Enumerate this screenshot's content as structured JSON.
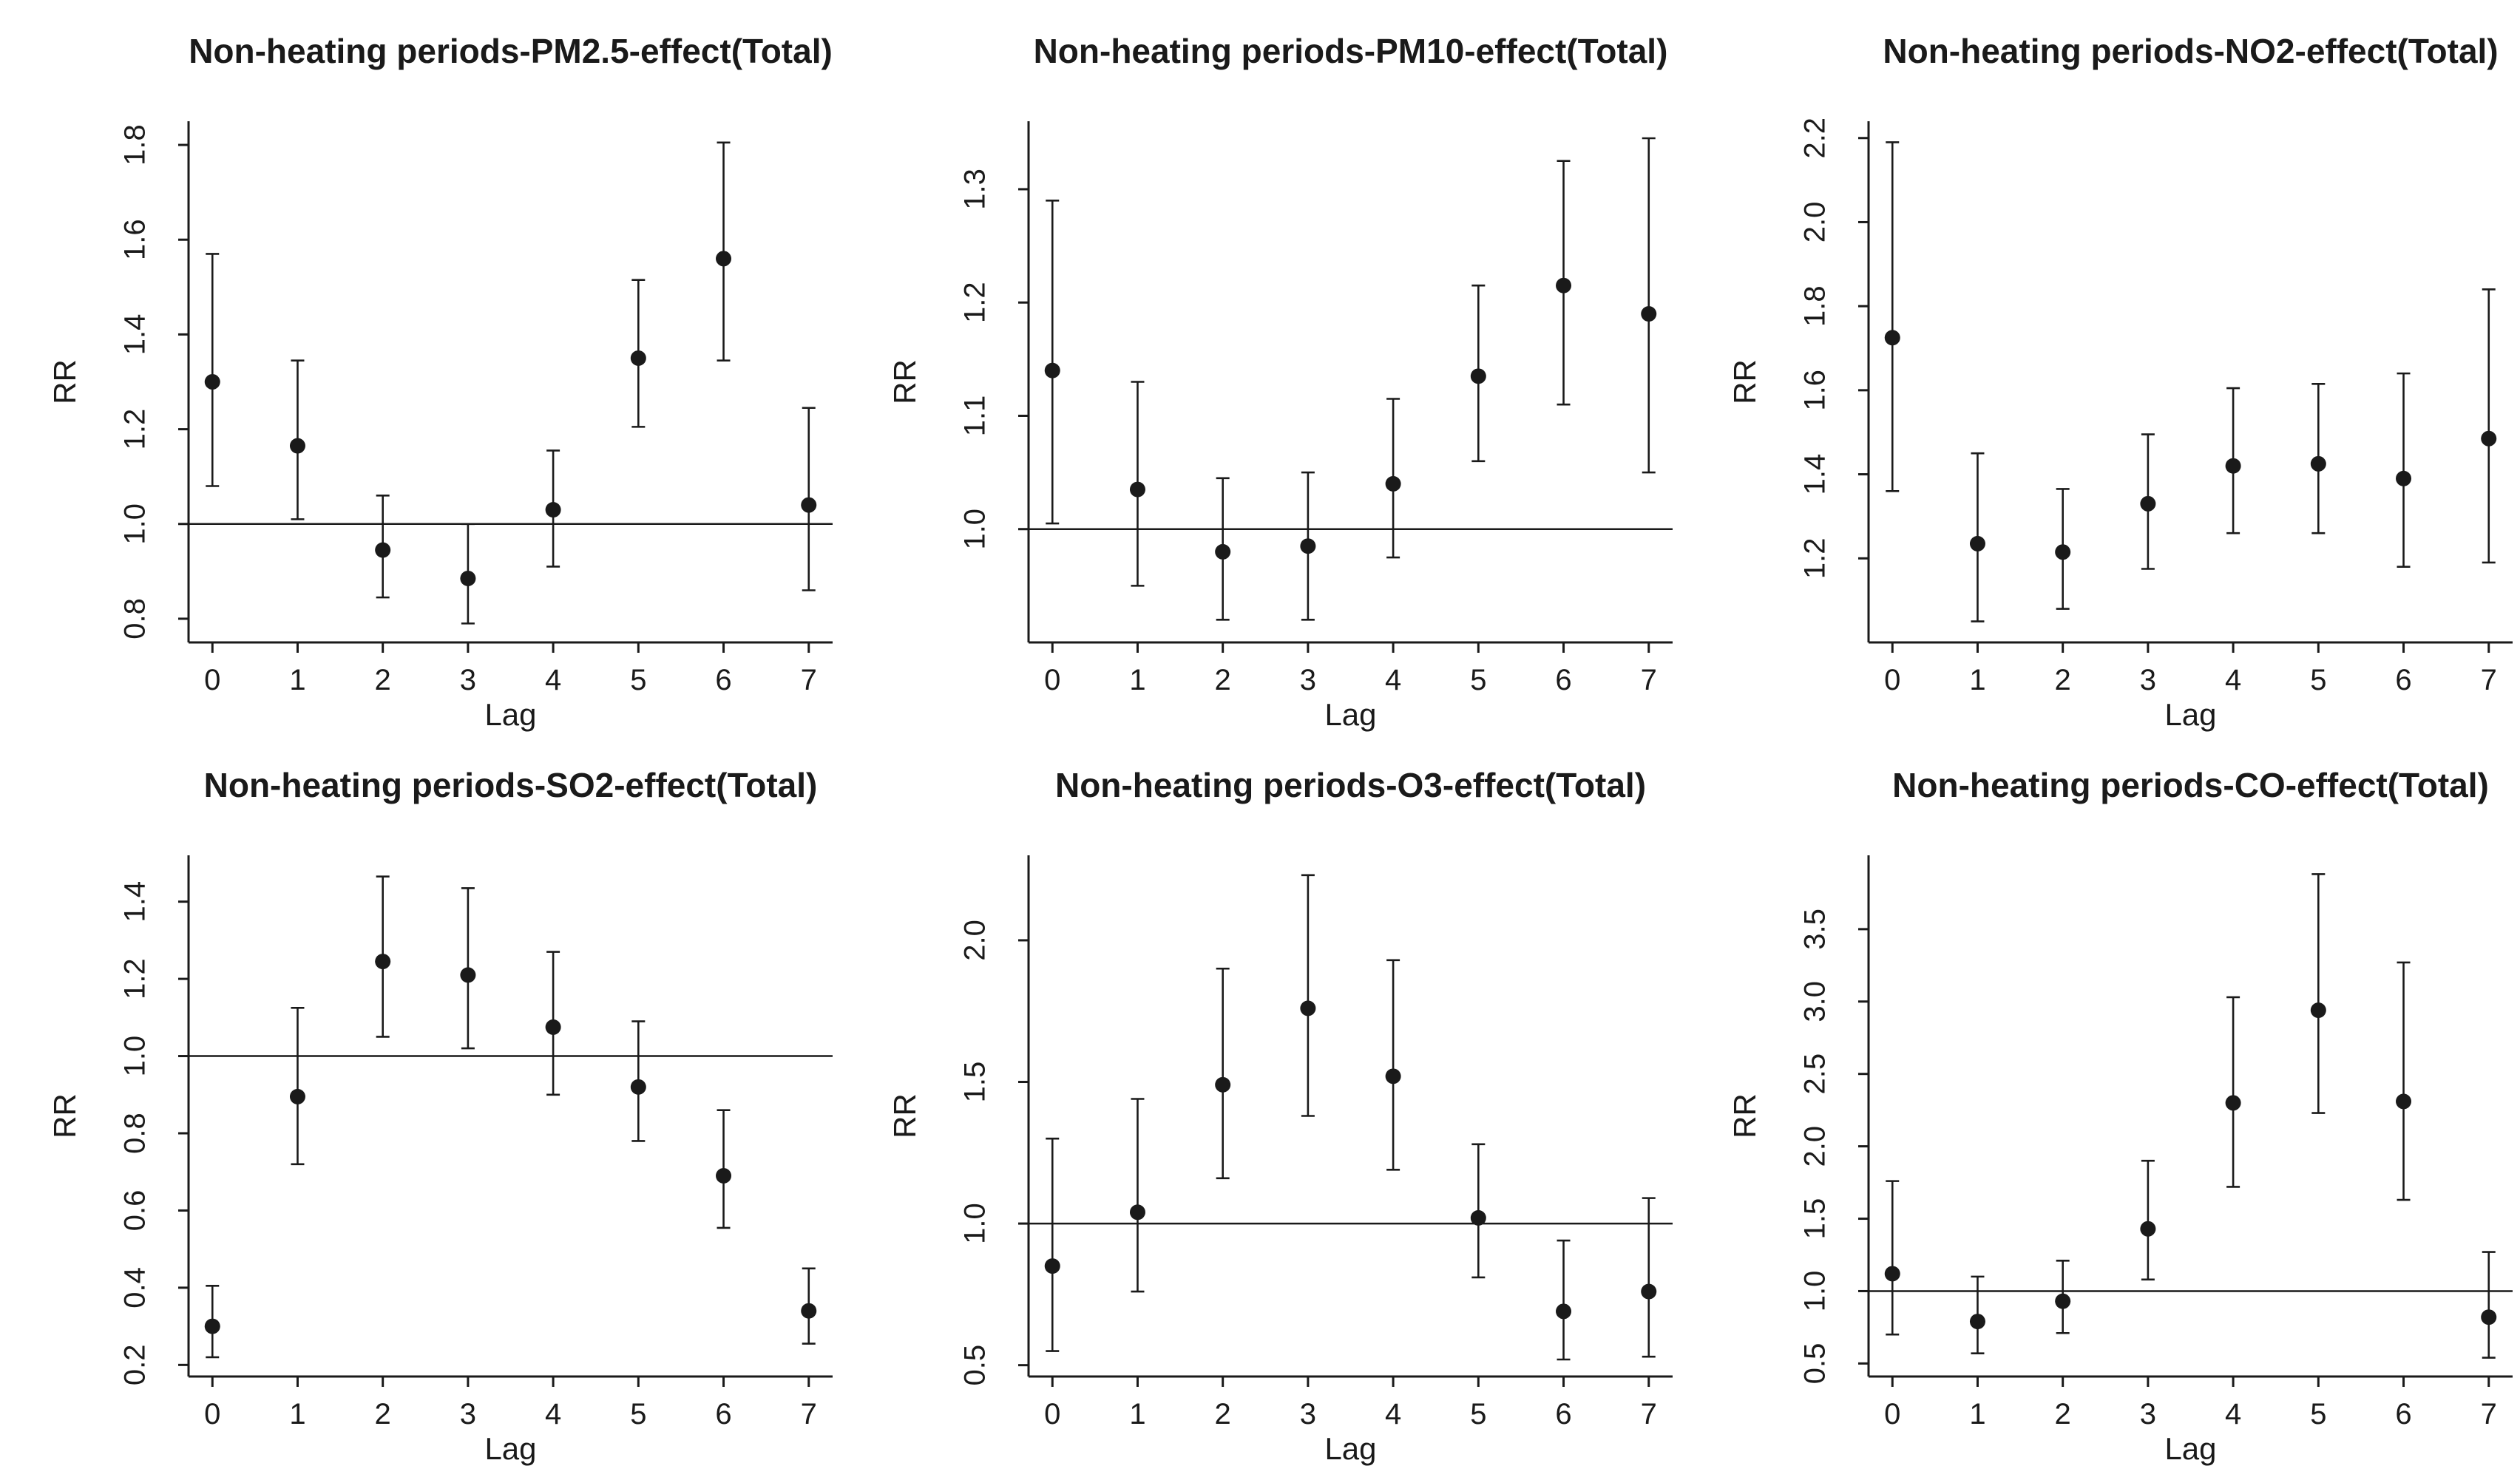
{
  "figure": {
    "background": "#ffffff",
    "ink_color": "#1a1a1a",
    "x_axis_label": "Lag",
    "y_axis_label": "RR",
    "x_ticks": [
      0,
      1,
      2,
      3,
      4,
      5,
      6,
      7
    ]
  },
  "chart_data": [
    {
      "type": "scatter",
      "title": "Non-heating periods-PM2.5-effect(Total)",
      "xlabel": "Lag",
      "ylabel": "RR",
      "x": [
        0,
        1,
        2,
        3,
        4,
        5,
        6,
        7
      ],
      "y": [
        1.3,
        1.165,
        0.945,
        0.885,
        1.03,
        1.35,
        1.56,
        1.04
      ],
      "ci_low": [
        1.08,
        1.01,
        0.845,
        0.79,
        0.91,
        1.205,
        1.345,
        0.86
      ],
      "ci_high": [
        1.57,
        1.345,
        1.06,
        1.0,
        1.155,
        1.515,
        1.805,
        1.245
      ],
      "yticks": [
        0.8,
        1.0,
        1.2,
        1.4,
        1.6,
        1.8
      ],
      "ylim": [
        0.75,
        1.85
      ],
      "xlim": [
        -0.28,
        7.28
      ],
      "refline": 1.0,
      "grid": false,
      "legend": null
    },
    {
      "type": "scatter",
      "title": "Non-heating periods-PM10-effect(Total)",
      "xlabel": "Lag",
      "ylabel": "RR",
      "x": [
        0,
        1,
        2,
        3,
        4,
        5,
        6,
        7
      ],
      "y": [
        1.14,
        1.035,
        0.98,
        0.985,
        1.04,
        1.135,
        1.215,
        1.19
      ],
      "ci_low": [
        1.005,
        0.95,
        0.92,
        0.92,
        0.975,
        1.06,
        1.11,
        1.05
      ],
      "ci_high": [
        1.29,
        1.13,
        1.045,
        1.05,
        1.115,
        1.215,
        1.325,
        1.345
      ],
      "yticks": [
        1.0,
        1.1,
        1.2,
        1.3
      ],
      "ylim": [
        0.9,
        1.36
      ],
      "xlim": [
        -0.28,
        7.28
      ],
      "refline": 1.0,
      "grid": false,
      "legend": null
    },
    {
      "type": "scatter",
      "title": "Non-heating periods-NO2-effect(Total)",
      "xlabel": "Lag",
      "ylabel": "RR",
      "x": [
        0,
        1,
        2,
        3,
        4,
        5,
        6,
        7
      ],
      "y": [
        1.725,
        1.235,
        1.215,
        1.33,
        1.42,
        1.425,
        1.39,
        1.485
      ],
      "ci_low": [
        1.36,
        1.05,
        1.08,
        1.175,
        1.26,
        1.26,
        1.18,
        1.19
      ],
      "ci_high": [
        2.19,
        1.45,
        1.365,
        1.495,
        1.605,
        1.615,
        1.64,
        1.84
      ],
      "yticks": [
        1.2,
        1.4,
        1.6,
        1.8,
        2.0,
        2.2
      ],
      "ylim": [
        1.0,
        2.24
      ],
      "xlim": [
        -0.28,
        7.28
      ],
      "refline": null,
      "grid": false,
      "legend": null
    },
    {
      "type": "scatter",
      "title": "Non-heating periods-SO2-effect(Total)",
      "xlabel": "Lag",
      "ylabel": "RR",
      "x": [
        0,
        1,
        2,
        3,
        4,
        5,
        6,
        7
      ],
      "y": [
        0.3,
        0.895,
        1.245,
        1.21,
        1.075,
        0.92,
        0.69,
        0.34
      ],
      "ci_low": [
        0.22,
        0.72,
        1.05,
        1.02,
        0.9,
        0.78,
        0.555,
        0.255
      ],
      "ci_high": [
        0.405,
        1.125,
        1.465,
        1.435,
        1.27,
        1.09,
        0.86,
        0.45
      ],
      "yticks": [
        0.2,
        0.4,
        0.6,
        0.8,
        1.0,
        1.2,
        1.4
      ],
      "ylim": [
        0.17,
        1.52
      ],
      "xlim": [
        -0.28,
        7.28
      ],
      "refline": 1.0,
      "grid": false,
      "legend": null
    },
    {
      "type": "scatter",
      "title": "Non-heating periods-O3-effect(Total)",
      "xlabel": "Lag",
      "ylabel": "RR",
      "x": [
        0,
        1,
        2,
        3,
        4,
        5,
        6,
        7
      ],
      "y": [
        0.85,
        1.04,
        1.49,
        1.76,
        1.52,
        1.02,
        0.69,
        0.76
      ],
      "ci_low": [
        0.55,
        0.76,
        1.16,
        1.38,
        1.19,
        0.81,
        0.52,
        0.53
      ],
      "ci_high": [
        1.3,
        1.44,
        1.9,
        2.23,
        1.93,
        1.28,
        0.94,
        1.09
      ],
      "yticks": [
        0.5,
        1.0,
        1.5,
        2.0
      ],
      "ylim": [
        0.46,
        2.3
      ],
      "xlim": [
        -0.28,
        7.28
      ],
      "refline": 1.0,
      "grid": false,
      "legend": null
    },
    {
      "type": "scatter",
      "title": "Non-heating periods-CO-effect(Total)",
      "xlabel": "Lag",
      "ylabel": "RR",
      "x": [
        0,
        1,
        2,
        3,
        4,
        5,
        6,
        7
      ],
      "y": [
        1.12,
        0.79,
        0.93,
        1.43,
        2.3,
        2.94,
        2.31,
        0.82
      ],
      "ci_low": [
        0.7,
        0.57,
        0.71,
        1.08,
        1.72,
        2.23,
        1.63,
        0.54
      ],
      "ci_high": [
        1.76,
        1.1,
        1.21,
        1.9,
        3.03,
        3.88,
        3.27,
        1.27
      ],
      "yticks": [
        0.5,
        1.0,
        1.5,
        2.0,
        2.5,
        3.0,
        3.5
      ],
      "ylim": [
        0.41,
        4.01
      ],
      "xlim": [
        -0.28,
        7.28
      ],
      "refline": 1.0,
      "grid": false,
      "legend": null
    }
  ]
}
